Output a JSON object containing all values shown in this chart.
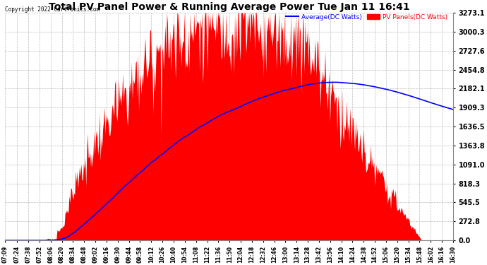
{
  "title": "Total PV Panel Power & Running Average Power Tue Jan 11 16:41",
  "copyright": "Copyright 2022 Cartronics.com",
  "legend_avg": "Average(DC Watts)",
  "legend_pv": "PV Panels(DC Watts)",
  "avg_color": "blue",
  "pv_color": "red",
  "background_color": "#ffffff",
  "grid_color": "#cccccc",
  "ymax": 3273.1,
  "yticks": [
    0.0,
    272.8,
    545.5,
    818.3,
    1091.0,
    1363.8,
    1636.5,
    1909.3,
    2182.1,
    2454.8,
    2727.6,
    3000.3,
    3273.1
  ],
  "x_labels": [
    "07:09",
    "07:24",
    "07:38",
    "07:52",
    "08:06",
    "08:20",
    "08:34",
    "08:48",
    "09:02",
    "09:16",
    "09:30",
    "09:44",
    "09:58",
    "10:12",
    "10:26",
    "10:40",
    "10:54",
    "11:08",
    "11:22",
    "11:36",
    "11:50",
    "12:04",
    "12:18",
    "12:32",
    "12:46",
    "13:00",
    "13:14",
    "13:28",
    "13:42",
    "13:56",
    "14:10",
    "14:24",
    "14:38",
    "14:52",
    "15:06",
    "15:20",
    "15:34",
    "15:48",
    "16:02",
    "16:16",
    "16:30"
  ],
  "avg_peak_time": 0.64,
  "avg_peak_value": 2182.1
}
